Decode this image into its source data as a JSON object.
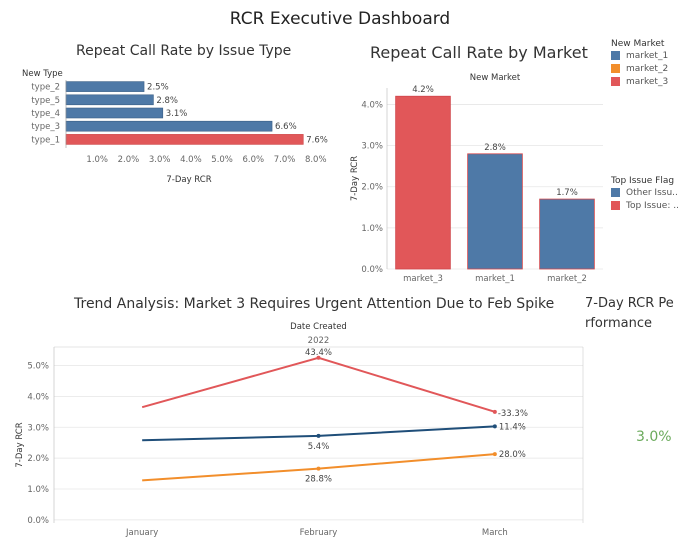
{
  "dashboard": {
    "title": "RCR Executive Dashboard"
  },
  "colors": {
    "blue": "#4e79a7",
    "red": "#e15759",
    "orange": "#f28e2b",
    "green": "#6aaa5b",
    "grid": "#e6e6e6",
    "axis": "#666666"
  },
  "chart_data": [
    {
      "id": "issue-type",
      "type": "bar",
      "orientation": "horizontal",
      "title": "Repeat Call Rate by Issue Type",
      "category_header": "New Type",
      "xlabel": "7-Day RCR",
      "categories": [
        "type_2",
        "type_5",
        "type_4",
        "type_3",
        "type_1"
      ],
      "values": [
        2.5,
        2.8,
        3.1,
        6.6,
        7.6
      ],
      "value_labels": [
        "2.5%",
        "2.8%",
        "3.1%",
        "6.6%",
        "7.6%"
      ],
      "colors": [
        "#4e79a7",
        "#4e79a7",
        "#4e79a7",
        "#4e79a7",
        "#e15759"
      ],
      "xlim": [
        0,
        8.2
      ],
      "xticks": [
        1,
        2,
        3,
        4,
        5,
        6,
        7,
        8
      ],
      "xtick_labels": [
        "1.0%",
        "2.0%",
        "3.0%",
        "4.0%",
        "5.0%",
        "6.0%",
        "7.0%",
        "8.0%"
      ],
      "grid": false
    },
    {
      "id": "market",
      "type": "bar",
      "orientation": "vertical",
      "title": "Repeat Call Rate by Market",
      "category_header": "New Market",
      "ylabel": "7-Day RCR",
      "categories": [
        "market_3",
        "market_1",
        "market_2"
      ],
      "values": [
        4.2,
        2.8,
        1.7
      ],
      "value_labels": [
        "4.2%",
        "2.8%",
        "1.7%"
      ],
      "colors": [
        "#e15759",
        "#4e79a7",
        "#4e79a7"
      ],
      "ylim": [
        0,
        4.4
      ],
      "yticks": [
        0,
        1,
        2,
        3,
        4
      ],
      "ytick_labels": [
        "0.0%",
        "1.0%",
        "2.0%",
        "3.0%",
        "4.0%"
      ],
      "grid": true
    },
    {
      "id": "trend",
      "type": "line",
      "title": "Trend Analysis: Market 3 Requires Urgent Attention Due to Feb Spike",
      "header": "Date Created",
      "subheader": "2022",
      "ylabel": "7-Day RCR",
      "x": [
        "January",
        "February",
        "March"
      ],
      "ylim": [
        -0.1,
        5.6
      ],
      "yticks": [
        0,
        1,
        2,
        3,
        4,
        5
      ],
      "ytick_labels": [
        "0.0%",
        "1.0%",
        "2.0%",
        "3.0%",
        "4.0%",
        "5.0%"
      ],
      "series": [
        {
          "values": [
            3.65,
            5.25,
            3.5
          ],
          "color": "#e15759",
          "point_labels": [
            "",
            "43.4%",
            "-33.3%"
          ]
        },
        {
          "values": [
            2.58,
            2.72,
            3.03
          ],
          "color": "#1f4e79",
          "point_labels": [
            "",
            "5.4%",
            "11.4%"
          ]
        },
        {
          "values": [
            1.28,
            1.66,
            2.13
          ],
          "color": "#f28e2b",
          "point_labels": [
            "",
            "28.8%",
            "28.0%"
          ]
        }
      ],
      "grid": true
    }
  ],
  "legends": {
    "market": {
      "title": "New Market",
      "items": [
        {
          "label": "market_1",
          "color": "#4e79a7"
        },
        {
          "label": "market_2",
          "color": "#f28e2b"
        },
        {
          "label": "market_3",
          "color": "#e15759"
        }
      ]
    },
    "issue_flag": {
      "title": "Top Issue Flag",
      "items": [
        {
          "label": "Other Issu..",
          "color": "#4e79a7"
        },
        {
          "label": "Top Issue: ..",
          "color": "#e15759"
        }
      ]
    }
  },
  "kpi": {
    "title": "7-Day RCR Performance",
    "value": "3.0%"
  }
}
